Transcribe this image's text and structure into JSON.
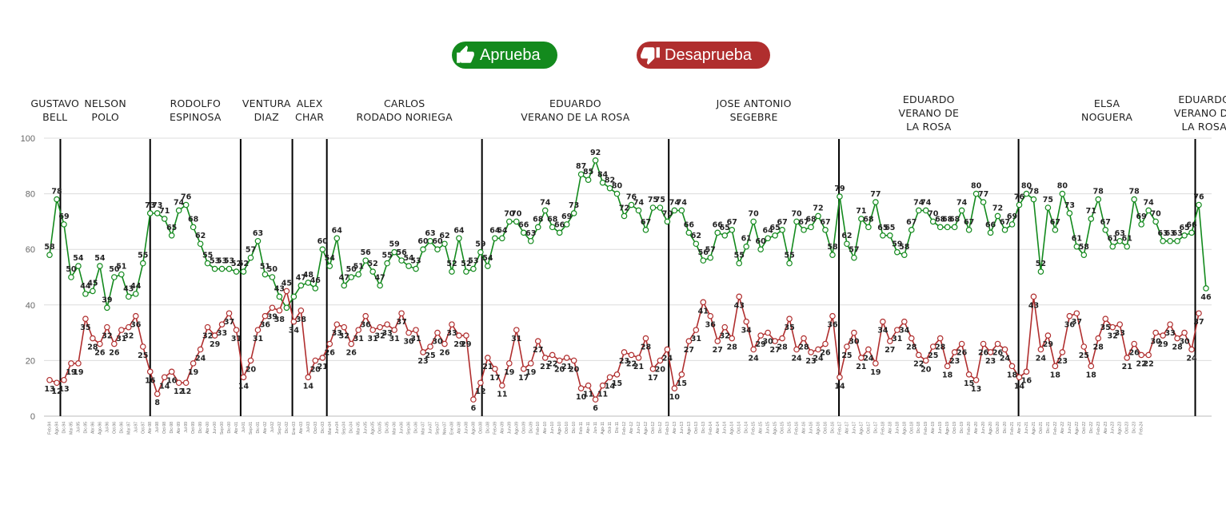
{
  "legend": {
    "approve_label": "Aprueba",
    "disapprove_label": "Desaprueba",
    "approve_icon": "thumbs-up-icon",
    "disapprove_icon": "thumbs-down-icon",
    "approve_color": "#138a1d",
    "disapprove_color": "#b02e2e"
  },
  "chart_data": {
    "type": "line",
    "ylim": [
      0,
      100
    ],
    "yticks": [
      0,
      20,
      40,
      60,
      80,
      100
    ],
    "grid": true,
    "series": [
      {
        "name": "Aprueba",
        "color": "#138a1d",
        "values": [
          58,
          78,
          69,
          50,
          54,
          44,
          45,
          54,
          39,
          50,
          51,
          43,
          44,
          55,
          73,
          73,
          71,
          65,
          74,
          76,
          68,
          62,
          55,
          53,
          53,
          53,
          52,
          52,
          57,
          63,
          51,
          50,
          43,
          39,
          43,
          47,
          48,
          46,
          60,
          54,
          64,
          47,
          50,
          51,
          56,
          52,
          47,
          55,
          59,
          56,
          54,
          53,
          60,
          63,
          60,
          62,
          52,
          64,
          52,
          53,
          59,
          54,
          64,
          64,
          70,
          70,
          66,
          63,
          68,
          74,
          68,
          66,
          69,
          73,
          87,
          85,
          92,
          84,
          82,
          80,
          72,
          76,
          74,
          67,
          75,
          75,
          70,
          74,
          74,
          66,
          62,
          56,
          57,
          66,
          65,
          67,
          55,
          61,
          70,
          60,
          64,
          65,
          67,
          55,
          70,
          67,
          68,
          72,
          67,
          58,
          79,
          62,
          57,
          71,
          68,
          77,
          65,
          65,
          59,
          58,
          67,
          74,
          74,
          70,
          68,
          68,
          68,
          74,
          67,
          80,
          77,
          66,
          72,
          67,
          69,
          76,
          80,
          78,
          52,
          75,
          67,
          80,
          73,
          61,
          58,
          71,
          78,
          67,
          61,
          63,
          61,
          78,
          69,
          74,
          70,
          63,
          63,
          63,
          65,
          66,
          76,
          46
        ]
      },
      {
        "name": "Desaprueba",
        "color": "#b02e2e",
        "values": [
          13,
          12,
          13,
          19,
          19,
          35,
          28,
          26,
          32,
          26,
          31,
          32,
          36,
          25,
          16,
          8,
          14,
          16,
          12,
          12,
          19,
          24,
          32,
          29,
          33,
          37,
          31,
          14,
          20,
          31,
          36,
          39,
          38,
          45,
          34,
          38,
          14,
          20,
          21,
          26,
          33,
          32,
          26,
          31,
          36,
          31,
          32,
          33,
          31,
          37,
          30,
          31,
          23,
          25,
          30,
          26,
          33,
          29,
          29,
          6,
          12,
          21,
          17,
          11,
          19,
          31,
          17,
          19,
          27,
          21,
          22,
          20,
          21,
          20,
          10,
          11,
          6,
          11,
          14,
          15,
          23,
          22,
          21,
          28,
          17,
          20,
          24,
          10,
          15,
          27,
          31,
          41,
          36,
          27,
          32,
          28,
          43,
          34,
          24,
          29,
          30,
          27,
          28,
          35,
          24,
          28,
          23,
          24,
          26,
          36,
          14,
          25,
          30,
          21,
          24,
          19,
          34,
          27,
          31,
          34,
          28,
          22,
          20,
          25,
          28,
          18,
          23,
          26,
          15,
          13,
          26,
          23,
          26,
          24,
          18,
          14,
          16,
          43,
          24,
          29,
          18,
          23,
          36,
          37,
          25,
          18,
          28,
          35,
          32,
          33,
          21,
          26,
          22,
          22,
          30,
          29,
          33,
          28,
          30,
          24,
          37
        ]
      }
    ],
    "labels_up": [
      58,
      78,
      69,
      50,
      54,
      44,
      45,
      54,
      39,
      50,
      51,
      43,
      44,
      55,
      73,
      73,
      71,
      65,
      74,
      76,
      68,
      62,
      55,
      53,
      53,
      53,
      52,
      52,
      57,
      63,
      51,
      50,
      43,
      null,
      null,
      47,
      48,
      46,
      60,
      54,
      64,
      47,
      50,
      51,
      56,
      52,
      47,
      55,
      59,
      56,
      54,
      53,
      60,
      63,
      60,
      62,
      52,
      64,
      52,
      53,
      59,
      54,
      64,
      64,
      70,
      70,
      66,
      63,
      68,
      74,
      68,
      66,
      69,
      73,
      87,
      85,
      92,
      84,
      82,
      80,
      72,
      76,
      74,
      67,
      75,
      75,
      70,
      74,
      74,
      66,
      62,
      56,
      57,
      66,
      65,
      67,
      55,
      61,
      70,
      60,
      64,
      65,
      67,
      55,
      70,
      67,
      68,
      72,
      67,
      58,
      79,
      62,
      57,
      71,
      68,
      77,
      65,
      65,
      59,
      58,
      67,
      74,
      74,
      70,
      68,
      68,
      68,
      74,
      67,
      80,
      77,
      66,
      72,
      67,
      69,
      76,
      80,
      78,
      52,
      75,
      67,
      80,
      73,
      61,
      58,
      71,
      78,
      67,
      61,
      63,
      61,
      78,
      69,
      74,
      70,
      63,
      63,
      63,
      65,
      66,
      76,
      46
    ],
    "labels_down": [
      13,
      12,
      13,
      19,
      19,
      35,
      28,
      26,
      32,
      26,
      31,
      32,
      36,
      25,
      16,
      8,
      14,
      16,
      12,
      12,
      19,
      24,
      32,
      29,
      33,
      37,
      31,
      14,
      20,
      31,
      36,
      39,
      38,
      45,
      34,
      38,
      14,
      20,
      21,
      26,
      33,
      32,
      26,
      31,
      36,
      31,
      32,
      33,
      31,
      37,
      30,
      31,
      23,
      25,
      30,
      26,
      33,
      29,
      29,
      6,
      12,
      21,
      17,
      11,
      19,
      31,
      17,
      19,
      27,
      21,
      22,
      20,
      21,
      20,
      10,
      11,
      6,
      11,
      14,
      15,
      23,
      22,
      21,
      28,
      17,
      20,
      24,
      10,
      15,
      27,
      31,
      41,
      36,
      27,
      32,
      28,
      43,
      34,
      24,
      29,
      30,
      27,
      28,
      35,
      24,
      28,
      23,
      24,
      26,
      36,
      14,
      25,
      30,
      21,
      24,
      19,
      34,
      27,
      31,
      34,
      28,
      22,
      20,
      25,
      28,
      18,
      23,
      26,
      15,
      13,
      26,
      23,
      26,
      24,
      18,
      14,
      16,
      43,
      24,
      29,
      18,
      23,
      36,
      37,
      25,
      18,
      28,
      35,
      32,
      33,
      21,
      26,
      22,
      22,
      30,
      29,
      33,
      28,
      30,
      24,
      37
    ],
    "eras": [
      {
        "lines": [
          "GUSTAVO",
          "BELL"
        ],
        "start": 0,
        "end": 1.5
      },
      {
        "lines": [
          "NELSON",
          "POLO"
        ],
        "start": 1.5,
        "end": 14
      },
      {
        "lines": [
          "RODOLFO",
          "ESPINOSA"
        ],
        "start": 14,
        "end": 26.6
      },
      {
        "lines": [
          "VENTURA",
          "DIAZ"
        ],
        "start": 26.6,
        "end": 33.8
      },
      {
        "lines": [
          "ALEX",
          "CHAR"
        ],
        "start": 33.8,
        "end": 38.6
      },
      {
        "lines": [
          "CARLOS",
          "RODADO NORIEGA"
        ],
        "start": 38.6,
        "end": 60.2
      },
      {
        "lines": [
          "EDUARDO",
          "VERANO DE LA ROSA"
        ],
        "start": 60.2,
        "end": 86.2
      },
      {
        "lines": [
          "JOSE ANTONIO",
          "SEGEBRE"
        ],
        "start": 86.2,
        "end": 109.9
      },
      {
        "lines": [
          "EDUARDO",
          "VERANO DE",
          "LA ROSA"
        ],
        "start": 109.9,
        "end": 134.9
      },
      {
        "lines": [
          "ELSA",
          "NOGUERA"
        ],
        "start": 134.9,
        "end": 159.5
      },
      {
        "lines": [
          "EDUARDO",
          "VERANO DE",
          "LA ROSA"
        ],
        "start": 159.5,
        "end": 162
      }
    ],
    "era_boundaries": [
      1.5,
      14,
      26.6,
      33.8,
      38.6,
      60.2,
      86.2,
      109.9,
      134.9,
      159.5
    ],
    "xtick_labels": [
      "Feb-94",
      "Ago-94",
      "Dic-94",
      "Mar-95",
      "Jul-95",
      "Dic-95",
      "Abr-96",
      "Ago-96",
      "Jul-96",
      "Oct-96",
      "Dic-96",
      "Mar-97",
      "Jul-97",
      "Oct-97",
      "Abr-98",
      "Jul-98",
      "Oct-98",
      "Dic-98",
      "Abr-99",
      "Jul-99",
      "Oct-99",
      "Dic-99",
      "Abr-00",
      "Jun-00",
      "Sep-00",
      "Dic-00",
      "Abr-01",
      "Jul-01",
      "Sep-01",
      "Dic-01",
      "Abr-02",
      "Jul-02",
      "Sep-02",
      "Dic-02",
      "Ene-03",
      "Abr-03",
      "Jul-03",
      "Oct-03",
      "Dic-03",
      "Mar-04",
      "Jun-04",
      "Sep-04",
      "Dic-04",
      "Mar-05",
      "Jun-05",
      "Ago-05",
      "Oct-05",
      "Dic-05",
      "Mar-06",
      "Jun-06",
      "Sep-06",
      "Dic-06",
      "Mar-07",
      "Jun-07",
      "Sep-07",
      "Nov-07",
      "Ene-08",
      "Abr-08",
      "Jun-08",
      "Ago-08",
      "Oct-08",
      "Dic-08",
      "Feb-09",
      "Abr-09",
      "Jun-09",
      "Ago-09",
      "Oct-09",
      "Dic-09",
      "Feb-10",
      "Abr-10",
      "Jun-10",
      "Ago-10",
      "Oct-10",
      "Dic-10",
      "Feb-11",
      "Abr-11",
      "Jun-11",
      "Ago-11",
      "Oct-11",
      "Dic-11",
      "Feb-12",
      "Abr-12",
      "Jun-12",
      "Ago-12",
      "Oct-12",
      "Dic-12",
      "Feb-13",
      "Abr-13",
      "Jun-13",
      "Ago-13",
      "Oct-13",
      "Dic-13",
      "Feb-14",
      "Abr-14",
      "Jun-14",
      "Ago-14",
      "Oct-14",
      "Dic-14",
      "Feb-15",
      "Abr-15",
      "Jun-15",
      "Ago-15",
      "Oct-15",
      "Dic-15",
      "Feb-16",
      "Abr-16",
      "Jun-16",
      "Ago-16",
      "Oct-16",
      "Dic-16",
      "Feb-17",
      "Abr-17",
      "Jun-17",
      "Ago-17",
      "Oct-17",
      "Dic-17",
      "Feb-18",
      "Abr-18",
      "Jun-18",
      "Ago-18",
      "Oct-18",
      "Dic-18",
      "Feb-19",
      "Abr-19",
      "Jun-19",
      "Ago-19",
      "Oct-19",
      "Dic-19",
      "Feb-20",
      "Abr-20",
      "Jun-20",
      "Ago-20",
      "Oct-20",
      "Dic-20",
      "Feb-21",
      "Abr-21",
      "Jun-21",
      "Ago-21",
      "Oct-21",
      "Dic-21",
      "Feb-22",
      "Abr-22",
      "Jun-22",
      "Ago-22",
      "Oct-22",
      "Dic-22",
      "Feb-23",
      "Abr-23",
      "Jun-23",
      "Ago-23",
      "Oct-23",
      "Dic-23",
      "Feb-24"
    ]
  }
}
